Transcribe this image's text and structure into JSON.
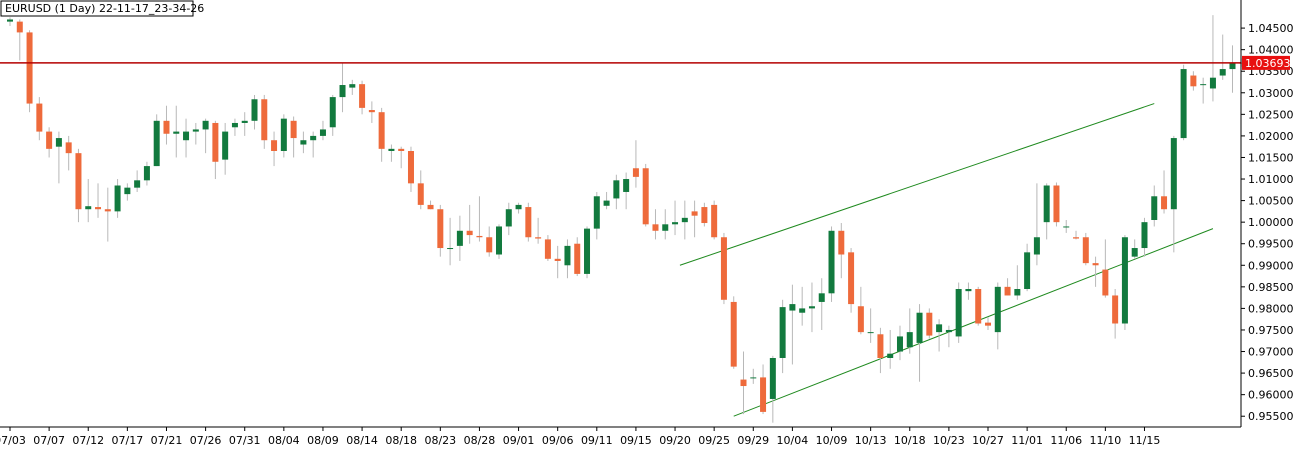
{
  "window": {
    "title": "EURUSD (1 Day) 22-11-17_23-34-26"
  },
  "colors": {
    "background": "#ffffff",
    "bull": "#127a3e",
    "bear": "#ee6a3b",
    "wick": "#b8b8b8",
    "channel": "#1f8a1f",
    "price_line": "#b50000",
    "price_label_bg": "#e81010",
    "axis": "#000000"
  },
  "chart_data": {
    "type": "candlestick",
    "symbol": "EURUSD",
    "timeframe": "1 Day",
    "ylim": [
      0.9525,
      1.0485
    ],
    "y_ticks": [
      "0.95500",
      "0.96000",
      "0.96500",
      "0.97000",
      "0.97500",
      "0.98000",
      "0.98500",
      "0.99000",
      "0.99500",
      "1.00000",
      "1.00500",
      "1.01000",
      "1.01500",
      "1.02000",
      "1.02500",
      "1.03000",
      "1.03500",
      "1.04000",
      "1.04500"
    ],
    "x_labels": [
      {
        "label": "07/03",
        "index": 0
      },
      {
        "label": "07/07",
        "index": 4
      },
      {
        "label": "07/12",
        "index": 8
      },
      {
        "label": "07/17",
        "index": 12
      },
      {
        "label": "07/21",
        "index": 16
      },
      {
        "label": "07/26",
        "index": 20
      },
      {
        "label": "07/31",
        "index": 24
      },
      {
        "label": "08/04",
        "index": 28
      },
      {
        "label": "08/09",
        "index": 32
      },
      {
        "label": "08/14",
        "index": 36
      },
      {
        "label": "08/18",
        "index": 40
      },
      {
        "label": "08/23",
        "index": 44
      },
      {
        "label": "08/28",
        "index": 48
      },
      {
        "label": "09/01",
        "index": 52
      },
      {
        "label": "09/06",
        "index": 56
      },
      {
        "label": "09/11",
        "index": 60
      },
      {
        "label": "09/15",
        "index": 64
      },
      {
        "label": "09/20",
        "index": 68
      },
      {
        "label": "09/25",
        "index": 72
      },
      {
        "label": "09/29",
        "index": 76
      },
      {
        "label": "10/04",
        "index": 80
      },
      {
        "label": "10/09",
        "index": 84
      },
      {
        "label": "10/13",
        "index": 88
      },
      {
        "label": "10/18",
        "index": 92
      },
      {
        "label": "10/23",
        "index": 96
      },
      {
        "label": "10/27",
        "index": 100
      },
      {
        "label": "11/01",
        "index": 104
      },
      {
        "label": "11/06",
        "index": 108
      },
      {
        "label": "11/10",
        "index": 112
      },
      {
        "label": "11/15",
        "index": 116
      }
    ],
    "current_price": "1.03693",
    "current_price_value": 1.03693,
    "candles": [
      {
        "o": 1.0465,
        "h": 1.0475,
        "l": 1.0455,
        "c": 1.047
      },
      {
        "o": 1.0465,
        "h": 1.047,
        "l": 1.0375,
        "c": 1.044
      },
      {
        "o": 1.044,
        "h": 1.0445,
        "l": 1.0255,
        "c": 1.0275
      },
      {
        "o": 1.0275,
        "h": 1.029,
        "l": 1.019,
        "c": 1.021
      },
      {
        "o": 1.021,
        "h": 1.022,
        "l": 1.015,
        "c": 1.017
      },
      {
        "o": 1.0175,
        "h": 1.021,
        "l": 1.009,
        "c": 1.0195
      },
      {
        "o": 1.0185,
        "h": 1.02,
        "l": 1.012,
        "c": 1.016
      },
      {
        "o": 1.016,
        "h": 1.017,
        "l": 1.0,
        "c": 1.003
      },
      {
        "o": 1.003,
        "h": 1.01,
        "l": 1.0,
        "c": 1.0037
      },
      {
        "o": 1.0035,
        "h": 1.009,
        "l": 1.001,
        "c": 1.003
      },
      {
        "o": 1.003,
        "h": 1.008,
        "l": 0.9955,
        "c": 1.0025
      },
      {
        "o": 1.0025,
        "h": 1.01,
        "l": 1.001,
        "c": 1.0085
      },
      {
        "o": 1.0065,
        "h": 1.009,
        "l": 1.005,
        "c": 1.008
      },
      {
        "o": 1.008,
        "h": 1.012,
        "l": 1.007,
        "c": 1.0097
      },
      {
        "o": 1.0097,
        "h": 1.014,
        "l": 1.0085,
        "c": 1.013
      },
      {
        "o": 1.013,
        "h": 1.025,
        "l": 1.013,
        "c": 1.0235
      },
      {
        "o": 1.0235,
        "h": 1.027,
        "l": 1.018,
        "c": 1.0205
      },
      {
        "o": 1.0205,
        "h": 1.027,
        "l": 1.015,
        "c": 1.021
      },
      {
        "o": 1.019,
        "h": 1.024,
        "l": 1.015,
        "c": 1.021
      },
      {
        "o": 1.021,
        "h": 1.023,
        "l": 1.018,
        "c": 1.0215
      },
      {
        "o": 1.0215,
        "h": 1.024,
        "l": 1.016,
        "c": 1.0235
      },
      {
        "o": 1.023,
        "h": 1.0235,
        "l": 1.01,
        "c": 1.014
      },
      {
        "o": 1.0145,
        "h": 1.023,
        "l": 1.011,
        "c": 1.021
      },
      {
        "o": 1.022,
        "h": 1.024,
        "l": 1.02,
        "c": 1.023
      },
      {
        "o": 1.023,
        "h": 1.0255,
        "l": 1.02,
        "c": 1.0235
      },
      {
        "o": 1.0235,
        "h": 1.0295,
        "l": 1.0215,
        "c": 1.0285
      },
      {
        "o": 1.0285,
        "h": 1.0295,
        "l": 1.017,
        "c": 1.019
      },
      {
        "o": 1.019,
        "h": 1.021,
        "l": 1.013,
        "c": 1.0165
      },
      {
        "o": 1.0165,
        "h": 1.025,
        "l": 1.015,
        "c": 1.024
      },
      {
        "o": 1.0235,
        "h": 1.0245,
        "l": 1.015,
        "c": 1.0195
      },
      {
        "o": 1.018,
        "h": 1.021,
        "l": 1.016,
        "c": 1.019
      },
      {
        "o": 1.019,
        "h": 1.021,
        "l": 1.015,
        "c": 1.02
      },
      {
        "o": 1.02,
        "h": 1.0235,
        "l": 1.019,
        "c": 1.0215
      },
      {
        "o": 1.022,
        "h": 1.0295,
        "l": 1.02,
        "c": 1.029
      },
      {
        "o": 1.029,
        "h": 1.0368,
        "l": 1.0255,
        "c": 1.0318
      },
      {
        "o": 1.0312,
        "h": 1.033,
        "l": 1.0295,
        "c": 1.032
      },
      {
        "o": 1.032,
        "h": 1.0328,
        "l": 1.025,
        "c": 1.0265
      },
      {
        "o": 1.026,
        "h": 1.028,
        "l": 1.023,
        "c": 1.0255
      },
      {
        "o": 1.0255,
        "h": 1.0265,
        "l": 1.014,
        "c": 1.017
      },
      {
        "o": 1.0165,
        "h": 1.018,
        "l": 1.014,
        "c": 1.017
      },
      {
        "o": 1.017,
        "h": 1.0175,
        "l": 1.0125,
        "c": 1.0165
      },
      {
        "o": 1.0165,
        "h": 1.0175,
        "l": 1.007,
        "c": 1.009
      },
      {
        "o": 1.009,
        "h": 1.012,
        "l": 1.003,
        "c": 1.004
      },
      {
        "o": 1.004,
        "h": 1.005,
        "l": 1.003,
        "c": 1.003
      },
      {
        "o": 1.003,
        "h": 1.004,
        "l": 0.992,
        "c": 0.994
      },
      {
        "o": 0.994,
        "h": 1.001,
        "l": 0.99,
        "c": 0.994
      },
      {
        "o": 0.9945,
        "h": 1.0015,
        "l": 0.991,
        "c": 0.998
      },
      {
        "o": 0.998,
        "h": 1.004,
        "l": 0.995,
        "c": 0.997
      },
      {
        "o": 0.9968,
        "h": 1.006,
        "l": 0.9955,
        "c": 0.9965
      },
      {
        "o": 0.9965,
        "h": 0.999,
        "l": 0.992,
        "c": 0.993
      },
      {
        "o": 0.9925,
        "h": 0.9995,
        "l": 0.9915,
        "c": 0.999
      },
      {
        "o": 0.999,
        "h": 1.0045,
        "l": 0.997,
        "c": 1.003
      },
      {
        "o": 1.003,
        "h": 1.0045,
        "l": 1.002,
        "c": 1.004
      },
      {
        "o": 1.0035,
        "h": 1.0045,
        "l": 0.9955,
        "c": 0.9965
      },
      {
        "o": 0.9965,
        "h": 1.001,
        "l": 0.995,
        "c": 0.9962
      },
      {
        "o": 0.996,
        "h": 0.997,
        "l": 0.991,
        "c": 0.9915
      },
      {
        "o": 0.9915,
        "h": 0.9945,
        "l": 0.987,
        "c": 0.991
      },
      {
        "o": 0.99,
        "h": 0.996,
        "l": 0.987,
        "c": 0.9945
      },
      {
        "o": 0.995,
        "h": 0.9965,
        "l": 0.9875,
        "c": 0.988
      },
      {
        "o": 0.988,
        "h": 0.999,
        "l": 0.987,
        "c": 0.9985
      },
      {
        "o": 0.9985,
        "h": 1.007,
        "l": 0.996,
        "c": 1.006
      },
      {
        "o": 1.0038,
        "h": 1.007,
        "l": 1.003,
        "c": 1.005
      },
      {
        "o": 1.0055,
        "h": 1.011,
        "l": 1.003,
        "c": 1.0097
      },
      {
        "o": 1.007,
        "h": 1.0115,
        "l": 1.003,
        "c": 1.01
      },
      {
        "o": 1.0125,
        "h": 1.019,
        "l": 1.008,
        "c": 1.0105
      },
      {
        "o": 1.0125,
        "h": 1.0135,
        "l": 0.999,
        "c": 0.9995
      },
      {
        "o": 0.9995,
        "h": 1.003,
        "l": 0.996,
        "c": 0.998
      },
      {
        "o": 0.998,
        "h": 1.003,
        "l": 0.996,
        "c": 0.9995
      },
      {
        "o": 0.9995,
        "h": 1.005,
        "l": 0.997,
        "c": 1.0
      },
      {
        "o": 1.0,
        "h": 1.005,
        "l": 0.996,
        "c": 1.001
      },
      {
        "o": 1.0025,
        "h": 1.005,
        "l": 0.9965,
        "c": 1.0015
      },
      {
        "o": 1.0035,
        "h": 1.0045,
        "l": 0.999,
        "c": 0.9998
      },
      {
        "o": 1.004,
        "h": 1.005,
        "l": 0.996,
        "c": 0.9965
      },
      {
        "o": 0.9965,
        "h": 0.9975,
        "l": 0.981,
        "c": 0.982
      },
      {
        "o": 0.9815,
        "h": 0.9828,
        "l": 0.966,
        "c": 0.9665
      },
      {
        "o": 0.9635,
        "h": 0.97,
        "l": 0.9555,
        "c": 0.962
      },
      {
        "o": 0.964,
        "h": 0.966,
        "l": 0.9625,
        "c": 0.964
      },
      {
        "o": 0.964,
        "h": 0.967,
        "l": 0.9555,
        "c": 0.956
      },
      {
        "o": 0.959,
        "h": 0.969,
        "l": 0.9535,
        "c": 0.9685
      },
      {
        "o": 0.9685,
        "h": 0.982,
        "l": 0.965,
        "c": 0.9803
      },
      {
        "o": 0.9795,
        "h": 0.9855,
        "l": 0.967,
        "c": 0.981
      },
      {
        "o": 0.979,
        "h": 0.985,
        "l": 0.976,
        "c": 0.98
      },
      {
        "o": 0.98,
        "h": 0.986,
        "l": 0.9745,
        "c": 0.9805
      },
      {
        "o": 0.9815,
        "h": 0.987,
        "l": 0.975,
        "c": 0.9835
      },
      {
        "o": 0.9835,
        "h": 0.999,
        "l": 0.9815,
        "c": 0.998
      },
      {
        "o": 0.998,
        "h": 0.9998,
        "l": 0.987,
        "c": 0.9925
      },
      {
        "o": 0.993,
        "h": 0.994,
        "l": 0.979,
        "c": 0.981
      },
      {
        "o": 0.9805,
        "h": 0.985,
        "l": 0.974,
        "c": 0.9745
      },
      {
        "o": 0.9745,
        "h": 0.98,
        "l": 0.972,
        "c": 0.9745
      },
      {
        "o": 0.974,
        "h": 0.9755,
        "l": 0.965,
        "c": 0.9685
      },
      {
        "o": 0.9685,
        "h": 0.975,
        "l": 0.966,
        "c": 0.9695
      },
      {
        "o": 0.97,
        "h": 0.976,
        "l": 0.968,
        "c": 0.9735
      },
      {
        "o": 0.971,
        "h": 0.98,
        "l": 0.9695,
        "c": 0.9745
      },
      {
        "o": 0.972,
        "h": 0.981,
        "l": 0.963,
        "c": 0.979
      },
      {
        "o": 0.979,
        "h": 0.98,
        "l": 0.973,
        "c": 0.9737
      },
      {
        "o": 0.9745,
        "h": 0.9775,
        "l": 0.97,
        "c": 0.9763
      },
      {
        "o": 0.9745,
        "h": 0.976,
        "l": 0.971,
        "c": 0.975
      },
      {
        "o": 0.9735,
        "h": 0.986,
        "l": 0.972,
        "c": 0.9845
      },
      {
        "o": 0.984,
        "h": 0.986,
        "l": 0.982,
        "c": 0.9845
      },
      {
        "o": 0.9845,
        "h": 0.985,
        "l": 0.976,
        "c": 0.9765
      },
      {
        "o": 0.9767,
        "h": 0.978,
        "l": 0.975,
        "c": 0.976
      },
      {
        "o": 0.9745,
        "h": 0.986,
        "l": 0.9705,
        "c": 0.985
      },
      {
        "o": 0.985,
        "h": 0.987,
        "l": 0.983,
        "c": 0.983
      },
      {
        "o": 0.983,
        "h": 0.99,
        "l": 0.982,
        "c": 0.9845
      },
      {
        "o": 0.9845,
        "h": 0.995,
        "l": 0.984,
        "c": 0.993
      },
      {
        "o": 0.9925,
        "h": 1.009,
        "l": 0.99,
        "c": 0.9965
      },
      {
        "o": 1.0,
        "h": 1.009,
        "l": 0.996,
        "c": 1.0085
      },
      {
        "o": 1.0085,
        "h": 1.0092,
        "l": 0.999,
        "c": 1.0
      },
      {
        "o": 0.999,
        "h": 1.0005,
        "l": 0.9975,
        "c": 0.999
      },
      {
        "o": 0.9965,
        "h": 0.998,
        "l": 0.996,
        "c": 0.9962
      },
      {
        "o": 0.9965,
        "h": 0.9975,
        "l": 0.99,
        "c": 0.9905
      },
      {
        "o": 0.9905,
        "h": 0.992,
        "l": 0.985,
        "c": 0.99
      },
      {
        "o": 0.989,
        "h": 0.996,
        "l": 0.9825,
        "c": 0.983
      },
      {
        "o": 0.983,
        "h": 0.9845,
        "l": 0.973,
        "c": 0.9765
      },
      {
        "o": 0.9765,
        "h": 0.997,
        "l": 0.975,
        "c": 0.9965
      },
      {
        "o": 0.992,
        "h": 0.996,
        "l": 0.9915,
        "c": 0.994
      },
      {
        "o": 0.994,
        "h": 1.001,
        "l": 0.992,
        "c": 1.0
      },
      {
        "o": 1.0005,
        "h": 1.0085,
        "l": 0.999,
        "c": 1.006
      },
      {
        "o": 1.006,
        "h": 1.012,
        "l": 1.002,
        "c": 1.003
      },
      {
        "o": 1.003,
        "h": 1.02,
        "l": 0.993,
        "c": 1.0195
      },
      {
        "o": 1.0195,
        "h": 1.0365,
        "l": 1.019,
        "c": 1.0355
      },
      {
        "o": 1.034,
        "h": 1.035,
        "l": 1.0305,
        "c": 1.0315
      },
      {
        "o": 1.0318,
        "h": 1.0335,
        "l": 1.0275,
        "c": 1.032
      },
      {
        "o": 1.031,
        "h": 1.048,
        "l": 1.028,
        "c": 1.0335
      },
      {
        "o": 1.034,
        "h": 1.0435,
        "l": 1.033,
        "c": 1.0355
      },
      {
        "o": 1.0355,
        "h": 1.041,
        "l": 1.03,
        "c": 1.037
      },
      {
        "o": 1.037,
        "h": 1.038,
        "l": 1.036,
        "c": 1.0369
      }
    ],
    "trendlines": [
      {
        "name": "channel-upper",
        "from": {
          "index": 68.5,
          "price": 0.99
        },
        "to": {
          "index": 117,
          "price": 1.0275
        }
      },
      {
        "name": "channel-lower",
        "from": {
          "index": 74,
          "price": 0.955
        },
        "to": {
          "index": 123,
          "price": 0.9985
        }
      }
    ]
  }
}
